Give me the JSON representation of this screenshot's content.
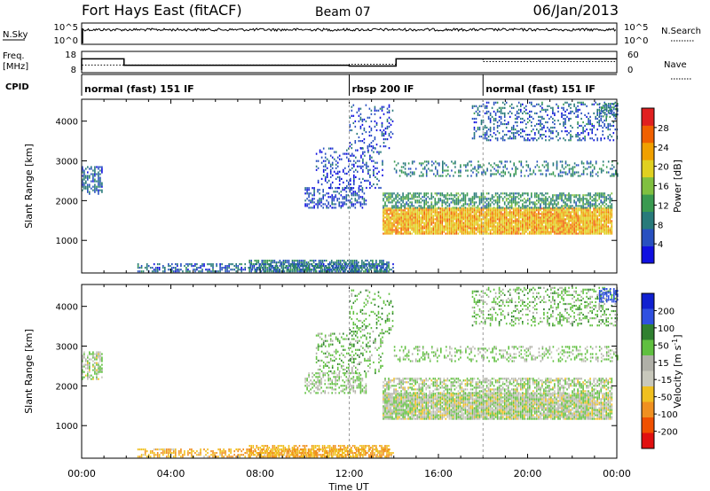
{
  "header": {
    "station": "Fort Hays East (fitACF)",
    "beam": "Beam 07",
    "date": "06/Jan/2013"
  },
  "top_panels": {
    "nsky_label": "N.Sky",
    "nsky_ticks": [
      "10^5",
      "10^0"
    ],
    "nsearch_ticks": [
      "10^5",
      "10^0"
    ],
    "nsearch_label": "N.Search",
    "freq_label": "Freq.",
    "freq_unit": "[MHz]",
    "freq_ticks": [
      "18",
      "8"
    ],
    "nave_ticks": [
      "60",
      "0"
    ],
    "nave_label": "Nave",
    "cpid_label": "CPID",
    "freq_series": [
      [
        0,
        0
      ],
      [
        0,
        15
      ],
      [
        1.9,
        15
      ],
      [
        1.9,
        11
      ],
      [
        12,
        11
      ],
      [
        12,
        10.5
      ],
      [
        14.1,
        10.5
      ],
      [
        14.1,
        15
      ],
      [
        24,
        15
      ]
    ],
    "nave_series": [
      [
        0,
        0
      ],
      [
        0,
        22
      ],
      [
        1.9,
        22
      ],
      [
        1.9,
        22
      ],
      [
        12,
        22
      ],
      [
        12,
        25
      ],
      [
        14.1,
        25
      ],
      [
        14.1,
        45
      ],
      [
        18,
        45
      ],
      [
        18,
        35
      ],
      [
        24,
        35
      ]
    ],
    "cpid": [
      {
        "start": 0,
        "text": "normal (fast) 151 IF"
      },
      {
        "start": 12,
        "text": "rbsp 200 IF"
      },
      {
        "start": 18,
        "text": "normal (fast) 151 IF"
      }
    ]
  },
  "colorbars": {
    "power": {
      "label": "Power [dB]",
      "ticks": [
        "4",
        "8",
        "12",
        "16",
        "20",
        "24",
        "28"
      ],
      "colors": [
        "#1010e0",
        "#2850c0",
        "#287a7a",
        "#3a9a50",
        "#80c040",
        "#e0d020",
        "#f0a000",
        "#f06000",
        "#e02020"
      ]
    },
    "velocity": {
      "label": "Velocity [m s",
      "label_sup": "-1",
      "label_end": "]",
      "ticks": [
        "200",
        "100",
        "50",
        "15",
        "-15",
        "-50",
        "-100",
        "-200"
      ],
      "colors": [
        "#1020d0",
        "#3050e0",
        "#308030",
        "#60c040",
        "#b0b0a8",
        "#c8c8bc",
        "#f0c020",
        "#f09020",
        "#f05000",
        "#e01010"
      ]
    }
  },
  "chart_data": {
    "type": "heatmap",
    "panels": [
      "Power [dB]",
      "Velocity [m s-1]"
    ],
    "ylabel": "Slant Range [km]",
    "yticks": [
      "1000",
      "2000",
      "3000",
      "4000"
    ],
    "ylim": [
      180,
      4550
    ],
    "xlabel": "Time UT",
    "xticks": [
      "00:00",
      "04:00",
      "08:00",
      "12:00",
      "16:00",
      "20:00",
      "00:00"
    ],
    "xlim": [
      0,
      24
    ],
    "echo_regions": [
      {
        "t0": 0.0,
        "t1": 0.9,
        "r0": 2150,
        "r1": 2850,
        "power": 8,
        "velocity": 10,
        "density": 0.55
      },
      {
        "t0": 10.0,
        "t1": 12.8,
        "r0": 1800,
        "r1": 2300,
        "power": 7,
        "velocity": 15,
        "density": 0.45
      },
      {
        "t0": 10.5,
        "t1": 13.5,
        "r0": 2300,
        "r1": 3300,
        "power": 6,
        "velocity": 30,
        "density": 0.25
      },
      {
        "t0": 12.0,
        "t1": 14.0,
        "r0": 3300,
        "r1": 4400,
        "power": 6,
        "velocity": 40,
        "density": 0.2
      },
      {
        "t0": 13.5,
        "t1": 23.8,
        "r0": 1150,
        "r1": 1800,
        "power": 22,
        "velocity": 5,
        "density": 0.95
      },
      {
        "t0": 13.5,
        "t1": 23.8,
        "r0": 1800,
        "r1": 2200,
        "power": 12,
        "velocity": 10,
        "density": 0.6
      },
      {
        "t0": 14.0,
        "t1": 24.0,
        "r0": 2600,
        "r1": 3000,
        "power": 10,
        "velocity": 20,
        "density": 0.3
      },
      {
        "t0": 17.5,
        "t1": 24.0,
        "r0": 3500,
        "r1": 4450,
        "power": 8,
        "velocity": 30,
        "density": 0.3
      },
      {
        "t0": 23.2,
        "t1": 24.0,
        "r0": 4100,
        "r1": 4450,
        "power": 10,
        "velocity": 150,
        "density": 0.6
      },
      {
        "t0": 2.5,
        "t1": 14.0,
        "r0": 200,
        "r1": 420,
        "power": 8,
        "velocity": -40,
        "density": 0.5
      },
      {
        "t0": 7.5,
        "t1": 13.8,
        "r0": 200,
        "r1": 500,
        "power": 10,
        "velocity": -50,
        "density": 0.7
      }
    ]
  }
}
